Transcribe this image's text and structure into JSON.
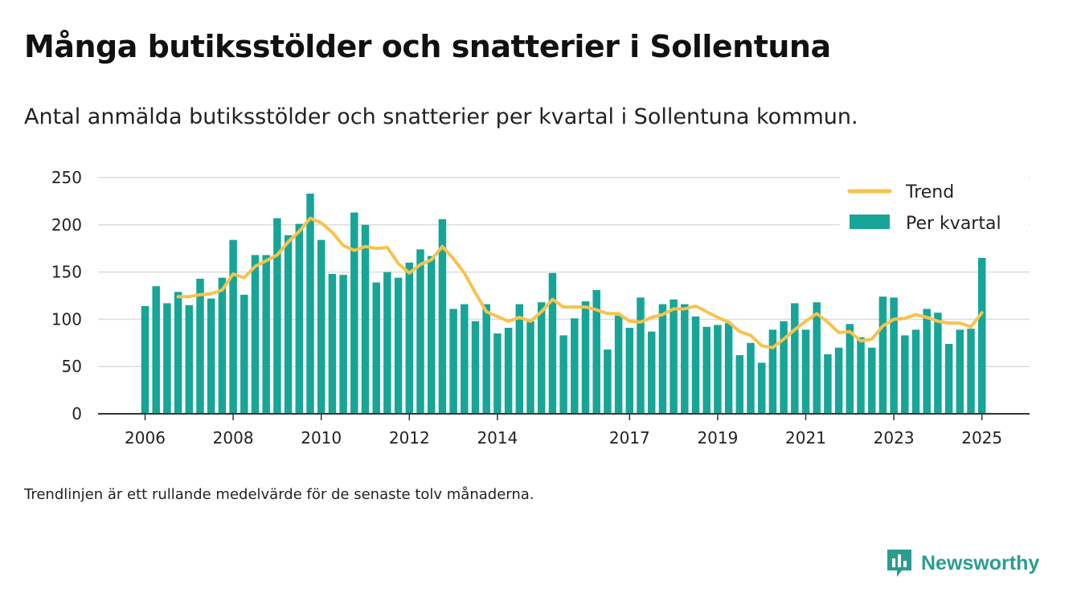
{
  "title": "Många butiksstölder och snatterier i Sollentuna",
  "subtitle": "Antal anmälda butiksstölder och snatterier per kvartal i Sollentuna kommun.",
  "footnote": "Trendlinjen är ett rullande medelvärde för de senaste tolv månaderna.",
  "brand": "Newsworthy",
  "colors": {
    "bar": "#17a598",
    "trend": "#f7c34d",
    "brand": "#2a9d8f"
  },
  "chart_data": {
    "type": "bar",
    "ylim": [
      0,
      250
    ],
    "yticks": [
      0,
      50,
      100,
      150,
      200,
      250
    ],
    "x_tick_labels": [
      "2006",
      "2008",
      "2010",
      "2012",
      "2014",
      "2017",
      "2019",
      "2021",
      "2023",
      "2025"
    ],
    "legend_position": "top-right",
    "grid": true,
    "series": [
      {
        "name": "Per kvartal",
        "kind": "bar",
        "x": [
          "2006 Q1",
          "2006 Q2",
          "2006 Q3",
          "2006 Q4",
          "2007 Q1",
          "2007 Q2",
          "2007 Q3",
          "2007 Q4",
          "2008 Q1",
          "2008 Q2",
          "2008 Q3",
          "2008 Q4",
          "2009 Q1",
          "2009 Q2",
          "2009 Q3",
          "2009 Q4",
          "2010 Q1",
          "2010 Q2",
          "2010 Q3",
          "2010 Q4",
          "2011 Q1",
          "2011 Q2",
          "2011 Q3",
          "2011 Q4",
          "2012 Q1",
          "2012 Q2",
          "2012 Q3",
          "2012 Q4",
          "2013 Q1",
          "2013 Q2",
          "2013 Q3",
          "2013 Q4",
          "2014 Q1",
          "2014 Q2",
          "2014 Q3",
          "2014 Q4",
          "2015 Q1",
          "2015 Q2",
          "2015 Q3",
          "2015 Q4",
          "2016 Q1",
          "2016 Q2",
          "2016 Q3",
          "2016 Q4",
          "2017 Q1",
          "2017 Q2",
          "2017 Q3",
          "2017 Q4",
          "2018 Q1",
          "2018 Q2",
          "2018 Q3",
          "2018 Q4",
          "2019 Q1",
          "2019 Q2",
          "2019 Q3",
          "2019 Q4",
          "2020 Q1",
          "2020 Q2",
          "2020 Q3",
          "2020 Q4",
          "2021 Q1",
          "2021 Q2",
          "2021 Q3",
          "2021 Q4",
          "2022 Q1",
          "2022 Q2",
          "2022 Q3",
          "2022 Q4",
          "2023 Q1",
          "2023 Q2",
          "2023 Q3",
          "2023 Q4",
          "2024 Q1",
          "2024 Q2",
          "2024 Q3",
          "2024 Q4",
          "2025 Q1"
        ],
        "values": [
          114,
          135,
          117,
          129,
          115,
          143,
          122,
          144,
          184,
          126,
          168,
          168,
          207,
          189,
          201,
          233,
          184,
          148,
          147,
          213,
          200,
          139,
          150,
          144,
          160,
          174,
          167,
          206,
          111,
          116,
          98,
          116,
          85,
          91,
          116,
          98,
          118,
          149,
          83,
          101,
          119,
          131,
          68,
          104,
          91,
          123,
          87,
          116,
          121,
          116,
          103,
          92,
          94,
          96,
          62,
          75,
          54,
          89,
          98,
          117,
          89,
          118,
          63,
          70,
          95,
          81,
          70,
          124,
          123,
          83,
          89,
          111,
          107,
          74,
          89,
          90,
          165
        ]
      },
      {
        "name": "Trend",
        "kind": "line",
        "x": [
          "2006 Q4",
          "2007 Q1",
          "2007 Q2",
          "2007 Q3",
          "2007 Q4",
          "2008 Q1",
          "2008 Q2",
          "2008 Q3",
          "2008 Q4",
          "2009 Q1",
          "2009 Q2",
          "2009 Q3",
          "2009 Q4",
          "2010 Q1",
          "2010 Q2",
          "2010 Q3",
          "2010 Q4",
          "2011 Q1",
          "2011 Q2",
          "2011 Q3",
          "2011 Q4",
          "2012 Q1",
          "2012 Q2",
          "2012 Q3",
          "2012 Q4",
          "2013 Q1",
          "2013 Q2",
          "2013 Q3",
          "2013 Q4",
          "2014 Q1",
          "2014 Q2",
          "2014 Q3",
          "2014 Q4",
          "2015 Q1",
          "2015 Q2",
          "2015 Q3",
          "2015 Q4",
          "2016 Q1",
          "2016 Q2",
          "2016 Q3",
          "2016 Q4",
          "2017 Q1",
          "2017 Q2",
          "2017 Q3",
          "2017 Q4",
          "2018 Q1",
          "2018 Q2",
          "2018 Q3",
          "2018 Q4",
          "2019 Q1",
          "2019 Q2",
          "2019 Q3",
          "2019 Q4",
          "2020 Q1",
          "2020 Q2",
          "2020 Q3",
          "2020 Q4",
          "2021 Q1",
          "2021 Q2",
          "2021 Q3",
          "2021 Q4",
          "2022 Q1",
          "2022 Q2",
          "2022 Q3",
          "2022 Q4",
          "2023 Q1",
          "2023 Q2",
          "2023 Q3",
          "2023 Q4",
          "2024 Q1",
          "2024 Q2",
          "2024 Q3",
          "2024 Q4",
          "2025 Q1"
        ],
        "values": [
          124,
          124,
          126,
          127,
          131,
          148,
          144,
          156,
          162,
          168,
          182,
          193,
          207,
          202,
          192,
          178,
          173,
          177,
          175,
          176,
          159,
          149,
          158,
          163,
          177,
          164,
          149,
          128,
          108,
          103,
          98,
          102,
          98,
          108,
          121,
          113,
          113,
          113,
          110,
          106,
          106,
          98,
          97,
          102,
          105,
          111,
          111,
          114,
          108,
          102,
          97,
          87,
          83,
          72,
          70,
          79,
          89,
          98,
          106,
          97,
          86,
          87,
          77,
          79,
          93,
          100,
          101,
          105,
          102,
          98,
          96,
          96,
          92,
          107
        ]
      }
    ]
  }
}
